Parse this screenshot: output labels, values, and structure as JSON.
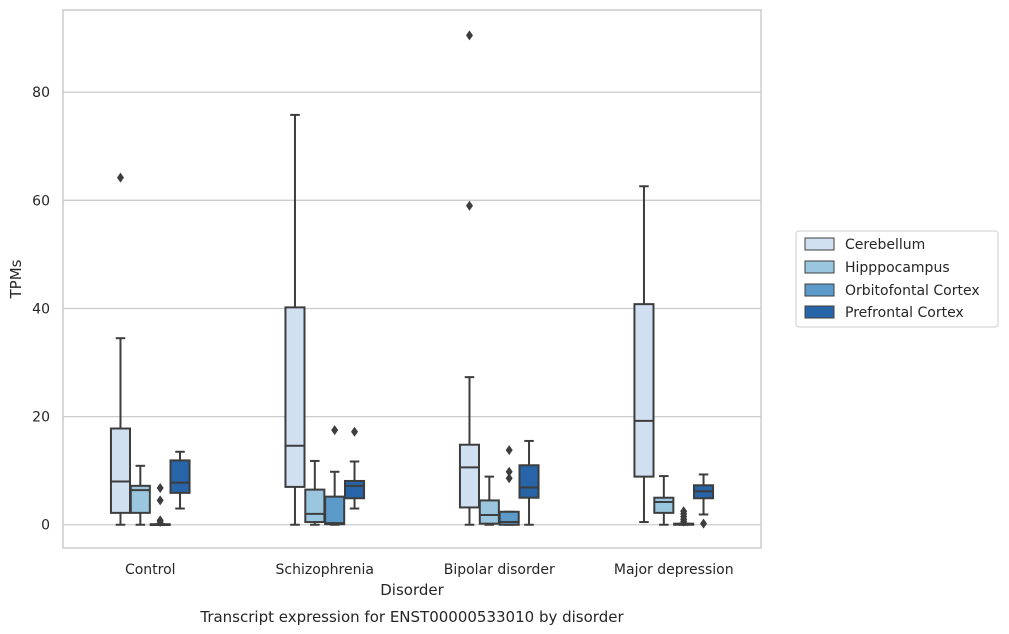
{
  "chart_data": {
    "type": "boxplot",
    "xlabel": "Disorder",
    "ylabel": "TPMs",
    "caption": "Transcript expression for ENST00000533010 by disorder",
    "categories": [
      "Control",
      "Schizophrenia",
      "Bipolar disorder",
      "Major depression"
    ],
    "ylim": [
      -4.3,
      95.2
    ],
    "yticks": [
      0,
      20,
      40,
      60,
      80
    ],
    "grid": "horizontal",
    "legend_position": "right",
    "series": [
      {
        "name": "Cerebellum",
        "color": "#d0e0f1",
        "boxes": [
          {
            "whislo": 0,
            "q1": 2.2,
            "med": 8.0,
            "q3": 17.8,
            "whishi": 34.5,
            "fliers": [
              64.2
            ]
          },
          {
            "whislo": 0,
            "q1": 7.0,
            "med": 14.6,
            "q3": 40.2,
            "whishi": 75.8,
            "fliers": []
          },
          {
            "whislo": 0,
            "q1": 3.2,
            "med": 10.6,
            "q3": 14.8,
            "whishi": 27.3,
            "fliers": [
              59.0,
              90.5
            ]
          },
          {
            "whislo": 0.5,
            "q1": 8.9,
            "med": 19.2,
            "q3": 40.8,
            "whishi": 62.6,
            "fliers": []
          }
        ]
      },
      {
        "name": "Hipppocampus",
        "color": "#9ac7df",
        "boxes": [
          {
            "whislo": 0,
            "q1": 2.2,
            "med": 6.4,
            "q3": 7.2,
            "whishi": 10.9,
            "fliers": []
          },
          {
            "whislo": 0,
            "q1": 0.5,
            "med": 2.0,
            "q3": 6.5,
            "whishi": 11.8,
            "fliers": []
          },
          {
            "whislo": 0,
            "q1": 0.2,
            "med": 1.8,
            "q3": 4.5,
            "whishi": 8.9,
            "fliers": []
          },
          {
            "whislo": 0,
            "q1": 2.2,
            "med": 4.2,
            "q3": 5.0,
            "whishi": 9.0,
            "fliers": []
          }
        ]
      },
      {
        "name": "Orbitofontal Cortex",
        "color": "#5b9ac9",
        "boxes": [
          {
            "whislo": 0,
            "q1": 0,
            "med": 0.05,
            "q3": 0.1,
            "whishi": 0.1,
            "fliers": [
              0.5,
              0.8,
              4.5,
              6.8
            ]
          },
          {
            "whislo": 0,
            "q1": 0.1,
            "med": 0.3,
            "q3": 5.2,
            "whishi": 9.8,
            "fliers": [
              17.5
            ]
          },
          {
            "whislo": 0,
            "q1": 0,
            "med": 0.5,
            "q3": 2.4,
            "whishi": 2.4,
            "fliers": [
              8.6,
              9.8,
              13.8
            ]
          },
          {
            "whislo": 0,
            "q1": 0,
            "med": 0.05,
            "q3": 0.2,
            "whishi": 0.2,
            "fliers": [
              0.6,
              1.0,
              1.5,
              2.0,
              2.5
            ]
          }
        ]
      },
      {
        "name": "Prefrontal Cortex",
        "color": "#2764a8",
        "boxes": [
          {
            "whislo": 3.0,
            "q1": 5.9,
            "med": 7.8,
            "q3": 11.9,
            "whishi": 13.5,
            "fliers": []
          },
          {
            "whislo": 3.0,
            "q1": 4.9,
            "med": 7.2,
            "q3": 8.1,
            "whishi": 11.7,
            "fliers": [
              17.2
            ]
          },
          {
            "whislo": 0,
            "q1": 5.0,
            "med": 6.9,
            "q3": 11.0,
            "whishi": 15.5,
            "fliers": []
          },
          {
            "whislo": 1.9,
            "q1": 4.9,
            "med": 6.2,
            "q3": 7.3,
            "whishi": 9.3,
            "fliers": [
              0.2
            ]
          }
        ]
      }
    ]
  }
}
